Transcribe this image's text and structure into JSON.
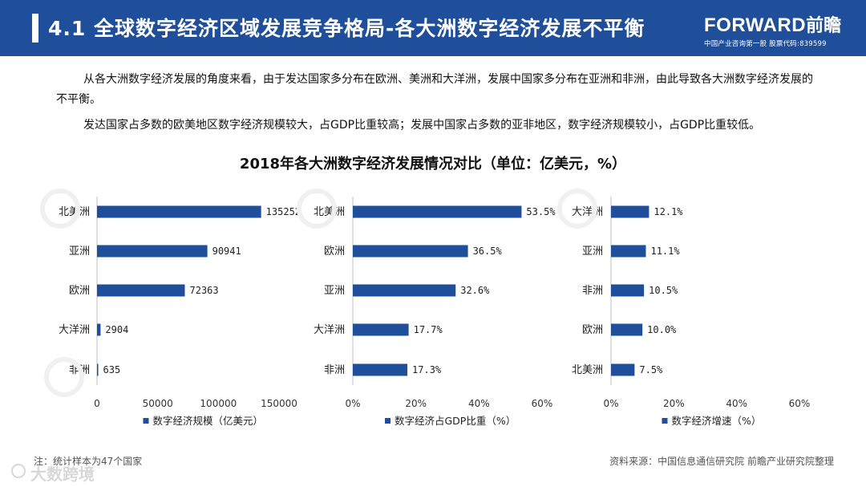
{
  "header": {
    "title": "4.1 全球数字经济区域发展竞争格局-各大洲数字经济发展不平衡",
    "logo_brand": "FORWARD",
    "logo_cn": "前瞻",
    "logo_tagline": "中国产业咨询第一股 股票代码:839599"
  },
  "paragraphs": [
    "从各大洲数字经济发展的角度来看，由于发达国家多分布在欧洲、美洲和大洋洲，发展中国家多分布在亚洲和非洲，由此导致各大洲数字经济发展的不平衡。",
    "发达国家占多数的欧美地区数字经济规模较大，占GDP比重较高；发展中国家占多数的亚非地区，数字经济规模较小，占GDP比重较低。"
  ],
  "chart_title": "2018年各大洲数字经济发展情况对比（单位：亿美元，%）",
  "chart_data": [
    {
      "type": "bar",
      "orientation": "horizontal",
      "series_name": "数字经济规模（亿美元）",
      "categories": [
        "北美洲",
        "亚洲",
        "欧洲",
        "大洋洲",
        "非洲"
      ],
      "values": [
        135252,
        90941,
        72363,
        2904,
        635
      ],
      "value_labels": [
        "135252",
        "90941",
        "72363",
        "2904",
        "635"
      ],
      "xlim": [
        0,
        150000
      ],
      "ticks": [
        0,
        50000,
        100000,
        150000
      ],
      "tick_labels": [
        "0",
        "50000",
        "100000",
        "150000"
      ],
      "legend": "bottom"
    },
    {
      "type": "bar",
      "orientation": "horizontal",
      "series_name": "数字经济占GDP比重（%）",
      "categories": [
        "北美洲",
        "欧洲",
        "亚洲",
        "大洋洲",
        "非洲"
      ],
      "values": [
        53.5,
        36.5,
        32.6,
        17.7,
        17.3
      ],
      "value_labels": [
        "53.5%",
        "36.5%",
        "32.6%",
        "17.7%",
        "17.3%"
      ],
      "xlim": [
        0,
        60
      ],
      "ticks": [
        0,
        20,
        40,
        60
      ],
      "tick_labels": [
        "0%",
        "20%",
        "40%",
        "60%"
      ],
      "legend": "bottom"
    },
    {
      "type": "bar",
      "orientation": "horizontal",
      "series_name": "数字经济增速（%）",
      "categories": [
        "大洋洲",
        "亚洲",
        "非洲",
        "欧洲",
        "北美洲"
      ],
      "values": [
        12.1,
        11.1,
        10.5,
        10.0,
        7.5
      ],
      "value_labels": [
        "12.1%",
        "11.1%",
        "10.5%",
        "10.0%",
        "7.5%"
      ],
      "xlim": [
        0,
        60
      ],
      "ticks": [
        0,
        20,
        40,
        60
      ],
      "tick_labels": [
        "0%",
        "20%",
        "40%",
        "60%"
      ],
      "legend": "bottom"
    }
  ],
  "colors": {
    "header_bg": "#1f4e9a",
    "bar": "#1f4e9a"
  },
  "footer": {
    "note": "注：统计样本为47个国家",
    "source": "资料来源：中国信息通信研究院 前瞻产业研究院整理",
    "watermark": "大数跨境"
  }
}
